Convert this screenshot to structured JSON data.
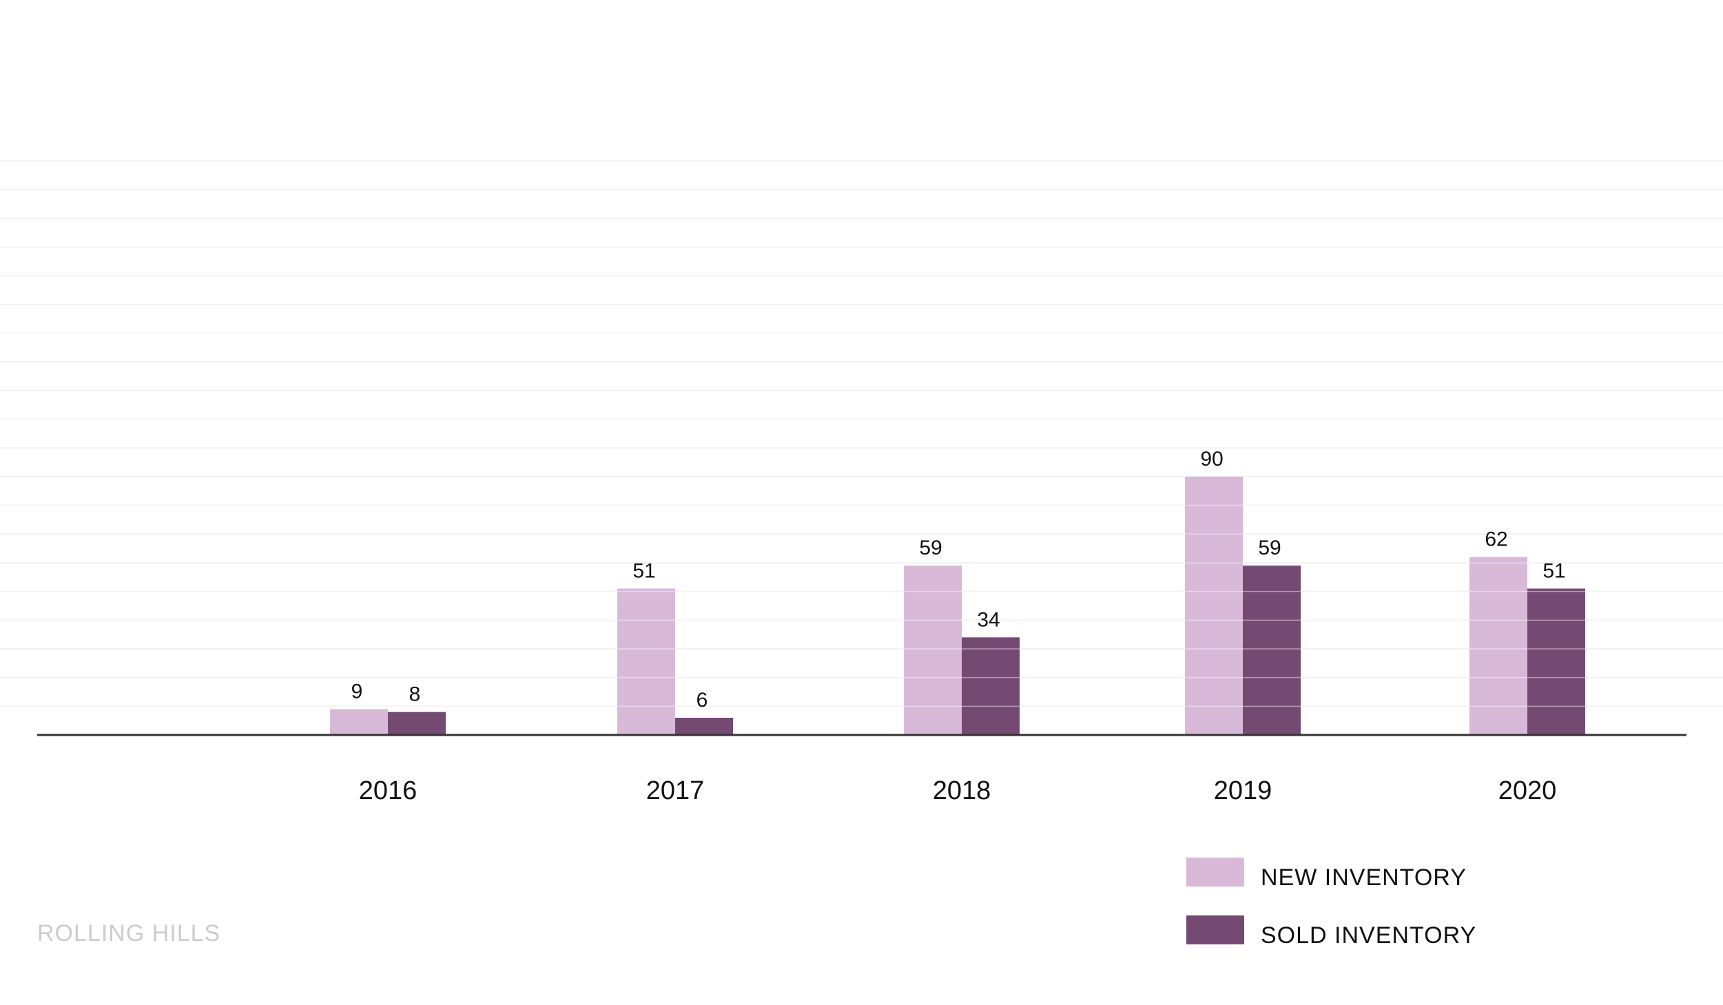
{
  "chart_data": {
    "type": "bar",
    "title": "",
    "xlabel": "",
    "ylabel": "",
    "categories": [
      "2016",
      "2017",
      "2018",
      "2019",
      "2020"
    ],
    "series": [
      {
        "name": "NEW INVENTORY",
        "values": [
          9,
          51,
          59,
          90,
          62
        ],
        "color": "#d8b9d8"
      },
      {
        "name": "SOLD INVENTORY",
        "values": [
          8,
          6,
          34,
          59,
          51
        ],
        "color": "#744a72"
      }
    ],
    "ylim": [
      0,
      200
    ],
    "grid": true,
    "gridline_color": "#f2f2f2",
    "axis_color": "#333333",
    "legend_position": "bottom-right"
  },
  "legend": {
    "items": [
      {
        "label": "NEW INVENTORY",
        "color": "#d8b9d8"
      },
      {
        "label": "SOLD INVENTORY",
        "color": "#744a72"
      }
    ]
  },
  "footer": {
    "label": "ROLLING HILLS"
  }
}
